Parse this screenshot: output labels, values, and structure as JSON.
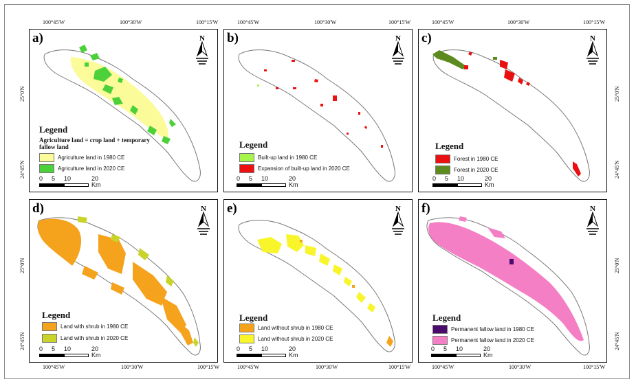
{
  "coords": {
    "top": [
      "100°45'W",
      "100°30'W",
      "100°15'W"
    ],
    "top_right": [
      "100°45'W",
      "100°30'W",
      "100°15'W"
    ],
    "bottom": [
      "100°45'W",
      "100°30'W",
      "100°15'W"
    ],
    "left": [
      "25°0'N",
      "24°45'N"
    ],
    "right": [
      "25°0'N",
      "24°45'N"
    ]
  },
  "north_label": "N",
  "scale": {
    "labels": [
      "0",
      "5",
      "10",
      "20"
    ],
    "unit": "Km"
  },
  "panels": [
    {
      "id": "a",
      "label": "a)",
      "legend_title": "Legend",
      "note": "Agriculture land = crop land + temporary fallow land",
      "items": [
        {
          "label": "Agriculture land in 1980 CE",
          "color": "#fbfb9a"
        },
        {
          "label": "Agriculture land in 2020 CE",
          "color": "#4cd13a"
        }
      ]
    },
    {
      "id": "b",
      "label": "b)",
      "legend_title": "Legend",
      "items": [
        {
          "label": "Built-up land in 1980 CE",
          "color": "#a6f54a"
        },
        {
          "label": "Expansion of built-up land in 2020 CE",
          "color": "#ee1111"
        }
      ]
    },
    {
      "id": "c",
      "label": "c)",
      "legend_title": "Legend",
      "items": [
        {
          "label": "Forest in 1980 CE",
          "color": "#e81010"
        },
        {
          "label": "Forest in 2020 CE",
          "color": "#5c8a1e"
        }
      ]
    },
    {
      "id": "d",
      "label": "d)",
      "legend_title": "Legend",
      "items": [
        {
          "label": "Land with shrub in 1980 CE",
          "color": "#f5a21c"
        },
        {
          "label": "Land with shrub in 2020 CE",
          "color": "#c9d42a"
        }
      ]
    },
    {
      "id": "e",
      "label": "e)",
      "legend_title": "Legend",
      "items": [
        {
          "label": "Land without shrub in 1980 CE",
          "color": "#f5a21c"
        },
        {
          "label": "Land without shrub in 2020 CE",
          "color": "#f8f52a"
        }
      ]
    },
    {
      "id": "f",
      "label": "f)",
      "legend_title": "Legend",
      "items": [
        {
          "label": "Permanent fallow land in 1980 CE",
          "color": "#4a0a6e"
        },
        {
          "label": "Permanent fallow land in 2020 CE",
          "color": "#f47fc4"
        }
      ]
    }
  ]
}
